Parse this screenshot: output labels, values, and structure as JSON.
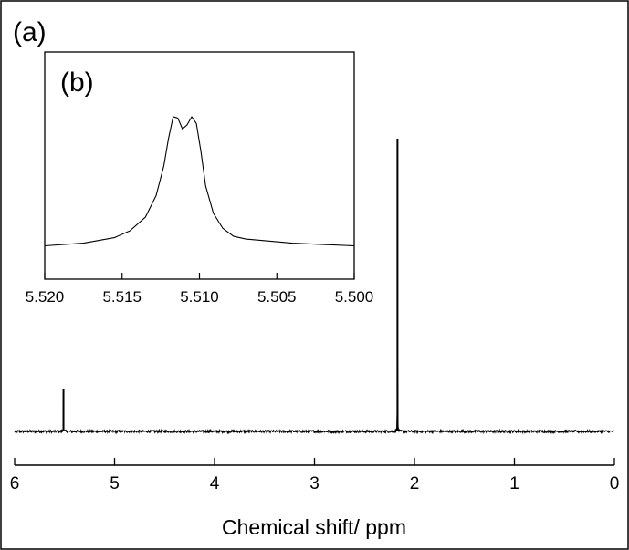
{
  "panel_labels": {
    "main": "(a)",
    "inset": "(b)"
  },
  "chart_data": [
    {
      "id": "main",
      "type": "line",
      "xlabel": "Chemical shift/ ppm",
      "ylabel": "",
      "xlim": [
        6,
        0
      ],
      "x_reversed": true,
      "ylim": [
        0,
        1.0
      ],
      "xticks": [
        6,
        5,
        4,
        3,
        2,
        1,
        0
      ],
      "xtick_labels": [
        "6",
        "5",
        "4",
        "3",
        "2",
        1,
        "0"
      ],
      "grid": false,
      "legend": "none",
      "y_axis_visible": false,
      "series": [
        {
          "baseline": 0.0,
          "noise_amplitude": 0.004,
          "peaks": [
            {
              "x": 5.511,
              "height": 0.146
            },
            {
              "x": 2.17,
              "height": 1.0
            }
          ]
        }
      ]
    },
    {
      "id": "inset",
      "type": "line",
      "xlabel": "",
      "ylabel": "",
      "xlim": [
        5.52,
        5.5
      ],
      "x_reversed": true,
      "ylim": [
        0,
        1.0
      ],
      "xticks": [
        5.52,
        5.515,
        5.51,
        5.505,
        5.5
      ],
      "xtick_labels": [
        "5.520",
        "5.515",
        "5.510",
        "5.505",
        "5.500"
      ],
      "grid": false,
      "legend": "none",
      "y_axis_visible": false,
      "series": [
        {
          "x": [
            5.52,
            5.5175,
            5.5155,
            5.5145,
            5.5135,
            5.5128,
            5.5123,
            5.512,
            5.5117,
            5.5114,
            5.5111,
            5.5108,
            5.5105,
            5.5102,
            5.5099,
            5.5096,
            5.5091,
            5.5085,
            5.5078,
            5.507,
            5.506,
            5.504,
            5.502,
            5.5
          ],
          "y": [
            0.01,
            0.03,
            0.07,
            0.12,
            0.22,
            0.38,
            0.6,
            0.8,
            0.96,
            0.95,
            0.87,
            0.9,
            0.96,
            0.91,
            0.7,
            0.45,
            0.25,
            0.14,
            0.08,
            0.06,
            0.05,
            0.03,
            0.02,
            0.01
          ]
        }
      ]
    }
  ]
}
